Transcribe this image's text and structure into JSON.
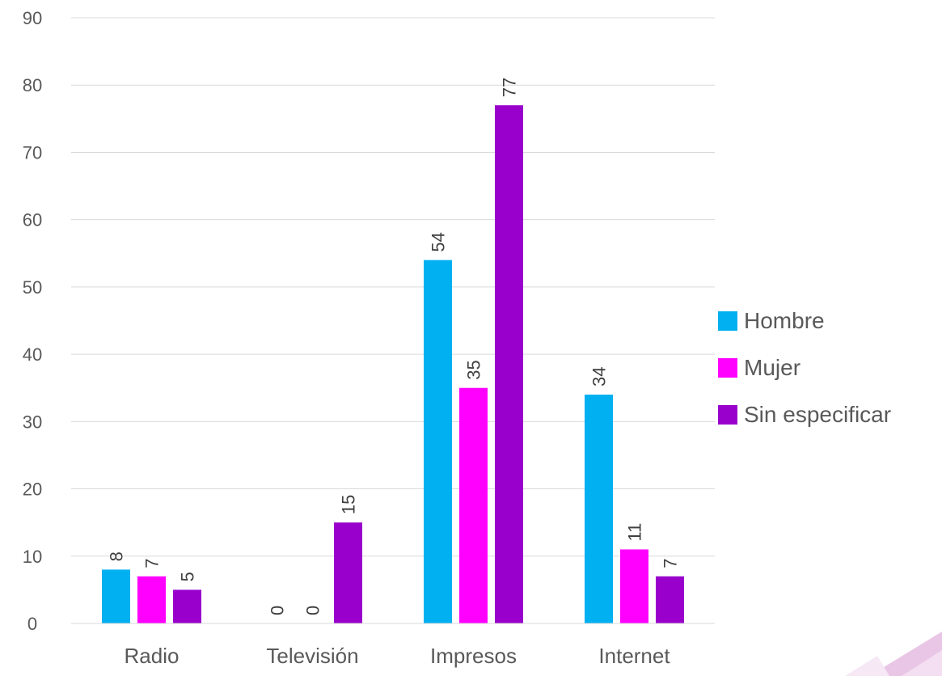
{
  "chart_data": {
    "type": "bar",
    "categories": [
      "Radio",
      "Televisión",
      "Impresos",
      "Internet"
    ],
    "series": [
      {
        "name": "Hombre",
        "color": "#00B0F0",
        "values": [
          8,
          0,
          54,
          34
        ]
      },
      {
        "name": "Mujer",
        "color": "#FF00FF",
        "values": [
          7,
          0,
          35,
          11
        ]
      },
      {
        "name": "Sin especificar",
        "color": "#9900CC",
        "values": [
          5,
          15,
          77,
          7
        ]
      }
    ],
    "ylim": [
      0,
      90
    ],
    "yticks": [
      0,
      10,
      20,
      30,
      40,
      50,
      60,
      70,
      80,
      90
    ],
    "grid": true,
    "legend_position": "right",
    "data_labels": "rotated-vertical"
  }
}
